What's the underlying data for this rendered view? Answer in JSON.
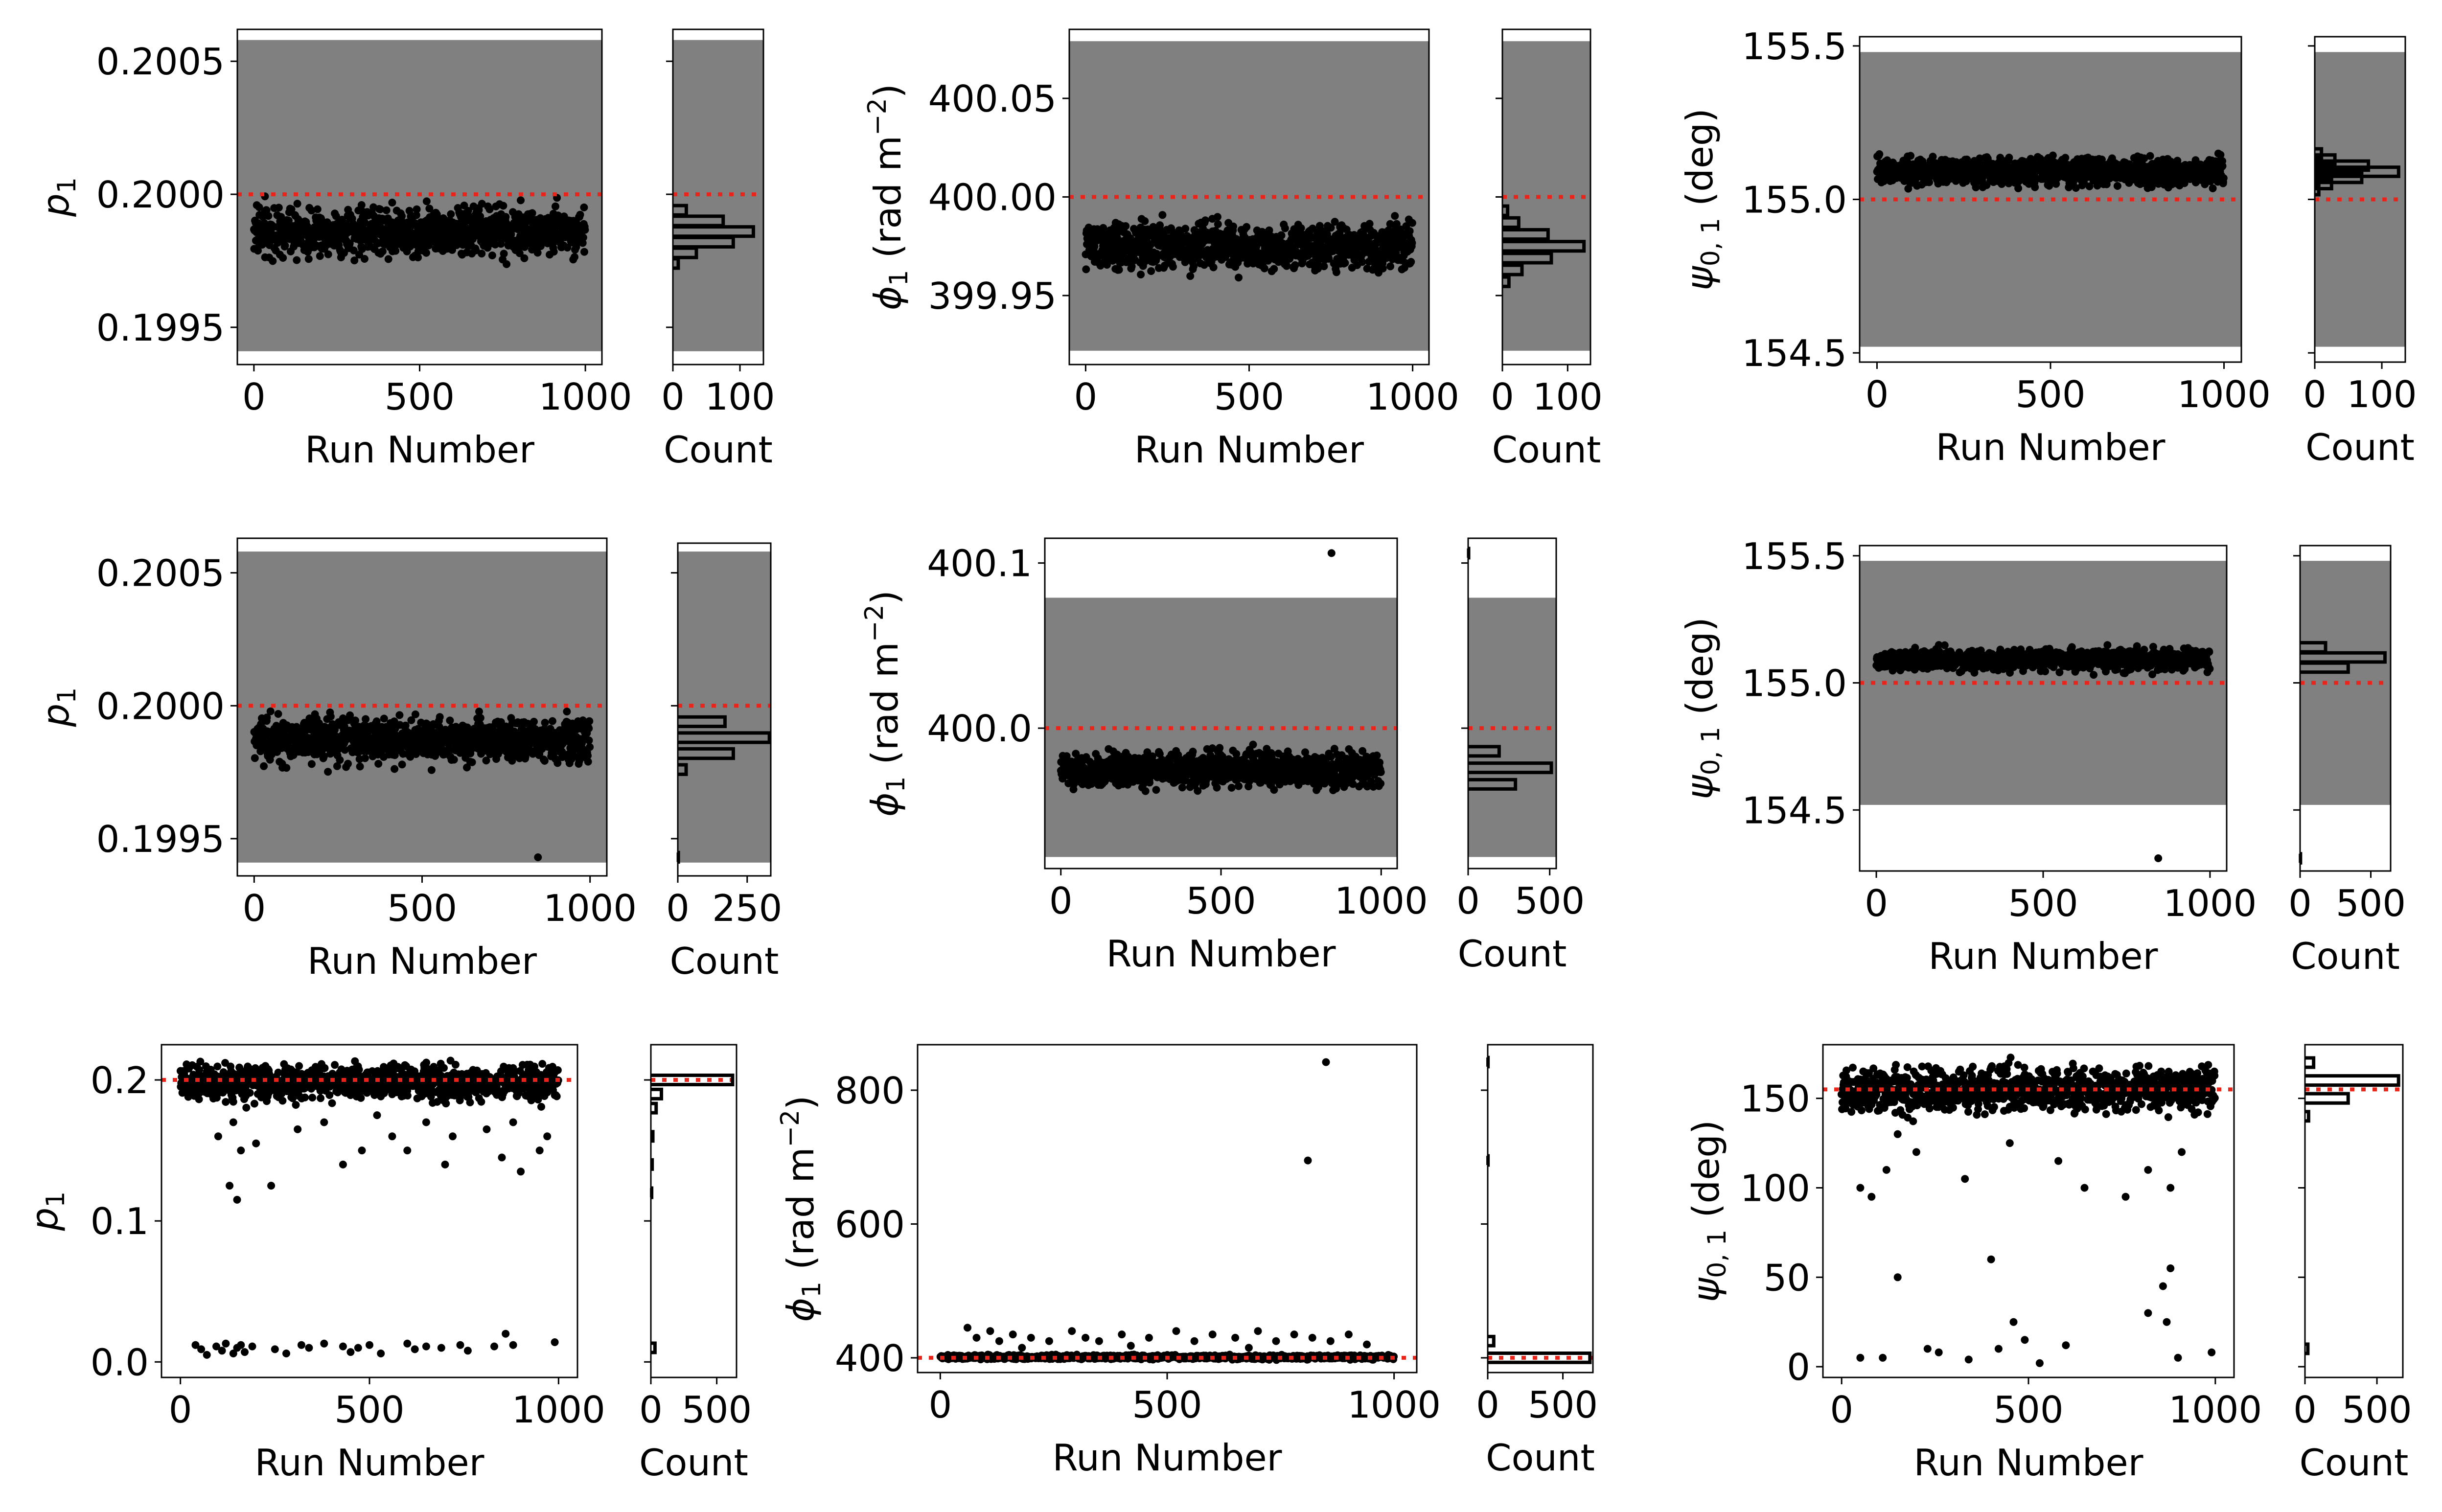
{
  "figure": {
    "shared": {
      "x_label": "Run Number",
      "hist_label": "Count",
      "p_label": "p",
      "p_sub": "1",
      "phi_label": "ϕ",
      "phi_sub": "1",
      "phi_unit_pre": " (rad m",
      "phi_unit_exp": "−2",
      "phi_unit_post": ")",
      "psi_label": "ψ",
      "psi_sub": "0, 1",
      "psi_unit": " (deg)"
    },
    "colors": {
      "band": "#808080",
      "truth_line": "#e8241b",
      "points": "#000000",
      "hist": "#000000"
    }
  },
  "chart_data": [
    {
      "id": "r1c1",
      "type": "scatter",
      "label_kind": "p",
      "xlim": [
        -50,
        1050
      ],
      "ylim": [
        0.19936,
        0.20062
      ],
      "xticks": [
        0,
        500,
        1000
      ],
      "xtick_labels": [
        "0",
        "500",
        "1000"
      ],
      "yticks": [
        0.1995,
        0.2,
        0.2005
      ],
      "ytick_labels": [
        "0.1995",
        "0.2000",
        "0.2005"
      ],
      "band": [
        0.19941,
        0.20058
      ],
      "truth": 0.2,
      "scatter": {
        "n": 1000,
        "center": 0.19986,
        "spread": 4.5e-05,
        "outliers": []
      },
      "hist": {
        "xlim": [
          0,
          135
        ],
        "xticks": [
          0,
          100
        ],
        "xtick_labels": [
          "0",
          "100"
        ],
        "bins": [
          {
            "y": 0.19986,
            "count": 120
          },
          {
            "y": 0.19982,
            "count": 90
          },
          {
            "y": 0.1999,
            "count": 75
          },
          {
            "y": 0.19978,
            "count": 35
          },
          {
            "y": 0.19994,
            "count": 20
          },
          {
            "y": 0.19974,
            "count": 8
          }
        ]
      }
    },
    {
      "id": "r1c2",
      "type": "scatter",
      "label_kind": "phi",
      "xlim": [
        -50,
        1050
      ],
      "ylim": [
        399.915,
        400.085
      ],
      "xticks": [
        0,
        500,
        1000
      ],
      "xtick_labels": [
        "0",
        "500",
        "1000"
      ],
      "yticks": [
        399.95,
        400.0,
        400.05
      ],
      "ytick_labels": [
        "399.95",
        "400.00",
        "400.05"
      ],
      "band": [
        399.922,
        400.079
      ],
      "truth": 400.0,
      "scatter": {
        "n": 1000,
        "center": 399.975,
        "spread": 0.0055,
        "outliers": []
      },
      "hist": {
        "xlim": [
          0,
          135
        ],
        "xticks": [
          0,
          100
        ],
        "xtick_labels": [
          "0",
          "100"
        ],
        "bins": [
          {
            "y": 399.975,
            "count": 125
          },
          {
            "y": 399.981,
            "count": 70
          },
          {
            "y": 399.969,
            "count": 75
          },
          {
            "y": 399.987,
            "count": 25
          },
          {
            "y": 399.963,
            "count": 30
          },
          {
            "y": 399.993,
            "count": 8
          },
          {
            "y": 399.957,
            "count": 10
          }
        ]
      }
    },
    {
      "id": "r1c3",
      "type": "scatter",
      "label_kind": "psi",
      "xlim": [
        -50,
        1050
      ],
      "ylim": [
        154.47,
        155.53
      ],
      "xticks": [
        0,
        500,
        1000
      ],
      "xtick_labels": [
        "0",
        "500",
        "1000"
      ],
      "yticks": [
        154.5,
        155.0,
        155.5
      ],
      "ytick_labels": [
        "154.5",
        "155.0",
        "155.5"
      ],
      "band": [
        154.52,
        155.48
      ],
      "truth": 155.0,
      "scatter": {
        "n": 1000,
        "center": 155.09,
        "spread": 0.022,
        "outliers": []
      },
      "hist": {
        "xlim": [
          0,
          135
        ],
        "xticks": [
          0,
          100
        ],
        "xtick_labels": [
          "0",
          "100"
        ],
        "bins": [
          {
            "y": 155.09,
            "count": 125
          },
          {
            "y": 155.11,
            "count": 80
          },
          {
            "y": 155.07,
            "count": 70
          },
          {
            "y": 155.13,
            "count": 30
          },
          {
            "y": 155.05,
            "count": 25
          },
          {
            "y": 155.15,
            "count": 10
          },
          {
            "y": 155.03,
            "count": 6
          }
        ]
      }
    },
    {
      "id": "r2c1",
      "type": "scatter",
      "label_kind": "p",
      "xlim": [
        -50,
        1050
      ],
      "ylim": [
        0.19936,
        0.20063
      ],
      "xticks": [
        0,
        500,
        1000
      ],
      "xtick_labels": [
        "0",
        "500",
        "1000"
      ],
      "yticks": [
        0.1995,
        0.2,
        0.2005
      ],
      "ytick_labels": [
        "0.1995",
        "0.2000",
        "0.2005"
      ],
      "band": [
        0.19941,
        0.20058
      ],
      "truth": 0.2,
      "scatter": {
        "n": 1000,
        "center": 0.19987,
        "spread": 4e-05,
        "outliers": [
          [
            845,
            0.19943
          ]
        ]
      },
      "hist": {
        "xlim": [
          0,
          335
        ],
        "xticks": [
          0,
          250
        ],
        "xtick_labels": [
          "0",
          "250"
        ],
        "bins": [
          {
            "y": 0.19988,
            "count": 330
          },
          {
            "y": 0.19982,
            "count": 200
          },
          {
            "y": 0.19994,
            "count": 170
          },
          {
            "y": 0.19976,
            "count": 30
          },
          {
            "y": 0.19943,
            "count": 2
          }
        ]
      }
    },
    {
      "id": "r2c2",
      "type": "scatter",
      "label_kind": "phi",
      "xlim": [
        -50,
        1050
      ],
      "ylim": [
        399.915,
        400.115
      ],
      "xticks": [
        0,
        500,
        1000
      ],
      "xtick_labels": [
        "0",
        "500",
        "1000"
      ],
      "yticks": [
        400.0,
        400.1
      ],
      "ytick_labels": [
        "400.0",
        "400.1"
      ],
      "band": [
        399.922,
        400.079
      ],
      "truth": 400.0,
      "scatter": {
        "n": 1000,
        "center": 399.975,
        "spread": 0.005,
        "outliers": [
          [
            845,
            400.106
          ]
        ]
      },
      "hist": {
        "xlim": [
          0,
          540
        ],
        "xticks": [
          0,
          500
        ],
        "xtick_labels": [
          "0",
          "500"
        ],
        "bins": [
          {
            "y": 399.976,
            "count": 510
          },
          {
            "y": 399.966,
            "count": 290
          },
          {
            "y": 399.986,
            "count": 190
          },
          {
            "y": 400.106,
            "count": 3
          }
        ]
      }
    },
    {
      "id": "r2c3",
      "type": "scatter",
      "label_kind": "psi",
      "xlim": [
        -50,
        1050
      ],
      "ylim": [
        154.26,
        155.54
      ],
      "xticks": [
        0,
        500,
        1000
      ],
      "xtick_labels": [
        "0",
        "500",
        "1000"
      ],
      "yticks": [
        154.5,
        155.0,
        155.5
      ],
      "ytick_labels": [
        "154.5",
        "155.0",
        "155.5"
      ],
      "band": [
        154.52,
        155.48
      ],
      "truth": 155.0,
      "scatter": {
        "n": 1000,
        "center": 155.09,
        "spread": 0.02,
        "outliers": [
          [
            845,
            154.31
          ]
        ]
      },
      "hist": {
        "xlim": [
          0,
          640
        ],
        "xticks": [
          0,
          500
        ],
        "xtick_labels": [
          "0",
          "500"
        ],
        "bins": [
          {
            "y": 155.1,
            "count": 600
          },
          {
            "y": 155.06,
            "count": 340
          },
          {
            "y": 155.14,
            "count": 180
          },
          {
            "y": 154.31,
            "count": 3
          }
        ]
      }
    },
    {
      "id": "r3c1",
      "type": "scatter",
      "label_kind": "p",
      "xlim": [
        -50,
        1050
      ],
      "ylim": [
        -0.011,
        0.225
      ],
      "xticks": [
        0,
        500,
        1000
      ],
      "xtick_labels": [
        "0",
        "500",
        "1000"
      ],
      "yticks": [
        0.0,
        0.1,
        0.2
      ],
      "ytick_labels": [
        "0.0",
        "0.1",
        "0.2"
      ],
      "band": null,
      "truth": 0.2,
      "scatter": {
        "n": 1000,
        "center": 0.198,
        "spread": 0.006,
        "outliers": [
          [
            40,
            0.012
          ],
          [
            55,
            0.009
          ],
          [
            70,
            0.005
          ],
          [
            95,
            0.011
          ],
          [
            110,
            0.008
          ],
          [
            120,
            0.013
          ],
          [
            140,
            0.006
          ],
          [
            150,
            0.01
          ],
          [
            160,
            0.012
          ],
          [
            170,
            0.007
          ],
          [
            190,
            0.011
          ],
          [
            250,
            0.009
          ],
          [
            280,
            0.006
          ],
          [
            320,
            0.012
          ],
          [
            340,
            0.01
          ],
          [
            380,
            0.013
          ],
          [
            430,
            0.011
          ],
          [
            450,
            0.007
          ],
          [
            470,
            0.01
          ],
          [
            500,
            0.012
          ],
          [
            530,
            0.006
          ],
          [
            600,
            0.013
          ],
          [
            620,
            0.009
          ],
          [
            650,
            0.011
          ],
          [
            690,
            0.01
          ],
          [
            740,
            0.012
          ],
          [
            760,
            0.008
          ],
          [
            830,
            0.011
          ],
          [
            860,
            0.02
          ],
          [
            880,
            0.012
          ],
          [
            990,
            0.014
          ],
          [
            130,
            0.125
          ],
          [
            150,
            0.115
          ],
          [
            240,
            0.125
          ],
          [
            100,
            0.16
          ],
          [
            160,
            0.15
          ],
          [
            200,
            0.155
          ],
          [
            140,
            0.17
          ],
          [
            430,
            0.14
          ],
          [
            480,
            0.15
          ],
          [
            560,
            0.16
          ],
          [
            600,
            0.15
          ],
          [
            700,
            0.14
          ],
          [
            720,
            0.16
          ],
          [
            850,
            0.145
          ],
          [
            900,
            0.135
          ],
          [
            950,
            0.15
          ],
          [
            970,
            0.16
          ],
          [
            310,
            0.165
          ],
          [
            380,
            0.17
          ],
          [
            520,
            0.175
          ],
          [
            650,
            0.17
          ],
          [
            810,
            0.165
          ],
          [
            880,
            0.17
          ]
        ]
      },
      "hist": {
        "xlim": [
          0,
          650
        ],
        "xticks": [
          0,
          500
        ],
        "xtick_labels": [
          "0",
          "500"
        ],
        "bins": [
          {
            "y": 0.2,
            "count": 620
          },
          {
            "y": 0.19,
            "count": 80
          },
          {
            "y": 0.18,
            "count": 40
          },
          {
            "y": 0.16,
            "count": 15
          },
          {
            "y": 0.14,
            "count": 10
          },
          {
            "y": 0.12,
            "count": 6
          },
          {
            "y": 0.01,
            "count": 31
          }
        ]
      }
    },
    {
      "id": "r3c2",
      "type": "scatter",
      "label_kind": "phi",
      "xlim": [
        -50,
        1050
      ],
      "ylim": [
        378,
        868
      ],
      "xticks": [
        0,
        500,
        1000
      ],
      "xtick_labels": [
        "0",
        "500",
        "1000"
      ],
      "yticks": [
        400,
        600,
        800
      ],
      "ytick_labels": [
        "400",
        "600",
        "800"
      ],
      "band": null,
      "truth": 400,
      "scatter": {
        "n": 1000,
        "center": 401,
        "spread": 1.5,
        "outliers": [
          [
            60,
            445
          ],
          [
            80,
            430
          ],
          [
            110,
            440
          ],
          [
            130,
            425
          ],
          [
            160,
            435
          ],
          [
            200,
            430
          ],
          [
            240,
            425
          ],
          [
            290,
            440
          ],
          [
            320,
            430
          ],
          [
            350,
            425
          ],
          [
            400,
            435
          ],
          [
            460,
            430
          ],
          [
            520,
            440
          ],
          [
            560,
            425
          ],
          [
            600,
            435
          ],
          [
            650,
            430
          ],
          [
            700,
            440
          ],
          [
            740,
            425
          ],
          [
            780,
            435
          ],
          [
            820,
            430
          ],
          [
            860,
            425
          ],
          [
            900,
            435
          ],
          [
            940,
            420
          ],
          [
            180,
            415
          ],
          [
            420,
            418
          ],
          [
            680,
            415
          ],
          [
            810,
            695
          ],
          [
            850,
            842
          ]
        ]
      },
      "hist": {
        "xlim": [
          0,
          700
        ],
        "xticks": [
          0,
          500
        ],
        "xtick_labels": [
          "0",
          "500"
        ],
        "bins": [
          {
            "y": 400,
            "count": 680
          },
          {
            "y": 425,
            "count": 40
          },
          {
            "y": 695,
            "count": 2
          },
          {
            "y": 842,
            "count": 2
          }
        ]
      }
    },
    {
      "id": "r3c3",
      "type": "scatter",
      "label_kind": "psi",
      "xlim": [
        -50,
        1050
      ],
      "ylim": [
        -6,
        180
      ],
      "xticks": [
        0,
        500,
        1000
      ],
      "xtick_labels": [
        "0",
        "500",
        "1000"
      ],
      "yticks": [
        0,
        50,
        100,
        150
      ],
      "ytick_labels": [
        "0",
        "50",
        "100",
        "150"
      ],
      "band": null,
      "truth": 155,
      "scatter": {
        "n": 1000,
        "center": 155,
        "spread": 6,
        "outliers": [
          [
            50,
            100
          ],
          [
            80,
            95
          ],
          [
            120,
            110
          ],
          [
            150,
            130
          ],
          [
            200,
            120
          ],
          [
            330,
            105
          ],
          [
            450,
            125
          ],
          [
            580,
            115
          ],
          [
            650,
            100
          ],
          [
            760,
            95
          ],
          [
            820,
            110
          ],
          [
            880,
            100
          ],
          [
            910,
            120
          ],
          [
            50,
            5
          ],
          [
            110,
            5
          ],
          [
            230,
            10
          ],
          [
            260,
            8
          ],
          [
            340,
            4
          ],
          [
            400,
            60
          ],
          [
            420,
            10
          ],
          [
            460,
            25
          ],
          [
            490,
            15
          ],
          [
            530,
            2
          ],
          [
            600,
            12
          ],
          [
            820,
            30
          ],
          [
            860,
            45
          ],
          [
            870,
            25
          ],
          [
            880,
            55
          ],
          [
            900,
            5
          ],
          [
            990,
            8
          ],
          [
            150,
            50
          ]
        ]
      },
      "hist": {
        "xlim": [
          0,
          680
        ],
        "xticks": [
          0,
          500
        ],
        "xtick_labels": [
          "0",
          "500"
        ],
        "bins": [
          {
            "y": 160,
            "count": 650
          },
          {
            "y": 150,
            "count": 300
          },
          {
            "y": 170,
            "count": 60
          },
          {
            "y": 140,
            "count": 25
          },
          {
            "y": 10,
            "count": 20
          }
        ]
      }
    }
  ]
}
